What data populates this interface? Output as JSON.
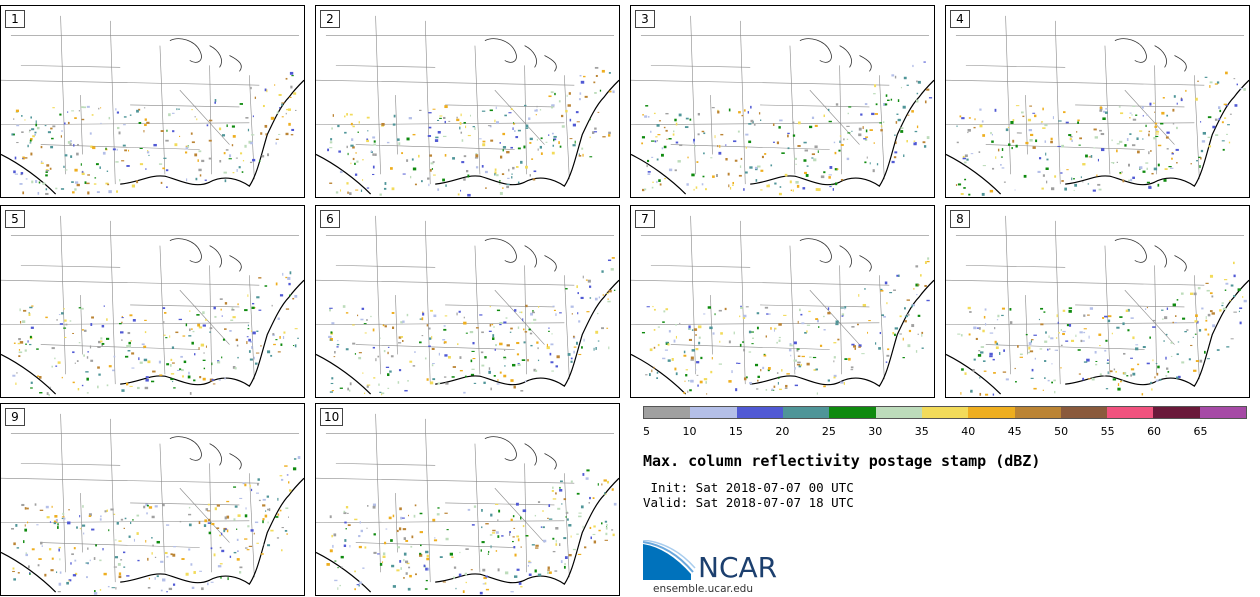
{
  "panels": [
    {
      "label": "1"
    },
    {
      "label": "2"
    },
    {
      "label": "3"
    },
    {
      "label": "4"
    },
    {
      "label": "5"
    },
    {
      "label": "6"
    },
    {
      "label": "7"
    },
    {
      "label": "8"
    },
    {
      "label": "9"
    },
    {
      "label": "10"
    }
  ],
  "colorbar": {
    "colors": [
      "#a0a0a0",
      "#b4bfe8",
      "#5059d4",
      "#4f9598",
      "#0f8a0f",
      "#bddcbb",
      "#f2db5a",
      "#eeae1f",
      "#bb8434",
      "#8a5a3c",
      "#f0527e",
      "#6a1a3a",
      "#a64aa6"
    ],
    "ticks": [
      "5",
      "10",
      "15",
      "20",
      "25",
      "30",
      "35",
      "40",
      "45",
      "50",
      "55",
      "60",
      "65"
    ]
  },
  "title": "Max. column reflectivity postage stamp (dBZ)",
  "init": " Init: Sat 2018-07-07 00 UTC",
  "valid": "Valid: Sat 2018-07-07 18 UTC",
  "logo": {
    "wordmark": "NCAR",
    "site": "ensemble.ucar.edu",
    "accent": "#0072bc"
  }
}
